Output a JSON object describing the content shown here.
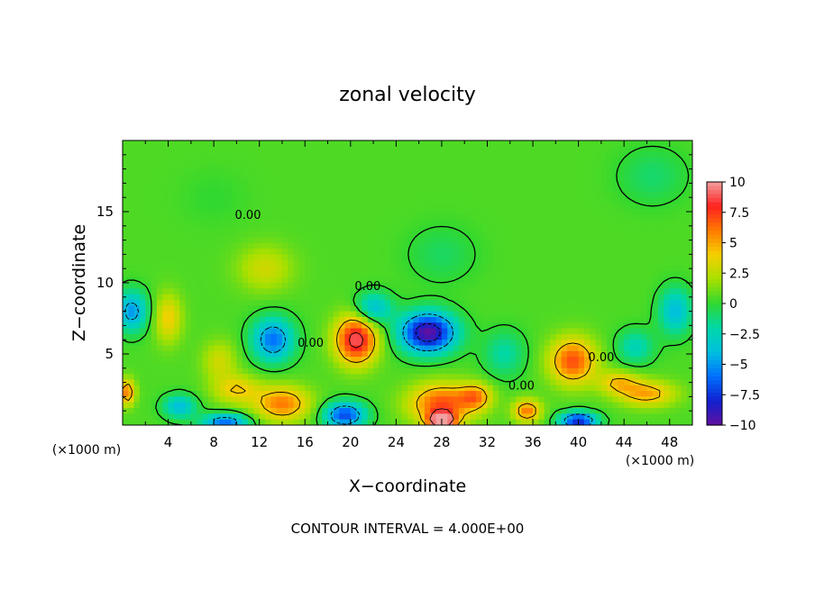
{
  "chart_data": {
    "type": "heatmap",
    "title": "zonal velocity",
    "xlabel": "X−coordinate",
    "ylabel": "Z−coordinate",
    "x_unit_left": "(×1000 m)",
    "x_unit_right": "(×1000 m)",
    "footer": "CONTOUR INTERVAL = 4.000E+00",
    "xlim": [
      0,
      50
    ],
    "ylim": [
      0,
      20
    ],
    "x_ticks": [
      4,
      8,
      12,
      16,
      20,
      24,
      28,
      32,
      36,
      40,
      44,
      48
    ],
    "y_ticks": [
      5,
      10,
      15
    ],
    "colorbar": {
      "range": [
        -10,
        10
      ],
      "tick_values": [
        10,
        7.5,
        5,
        2.5,
        0,
        -2.5,
        -5,
        -7.5,
        -10
      ],
      "tick_labels": [
        "10",
        "7.5",
        "5",
        "2.5",
        "0",
        "−2.5",
        "−5",
        "−7.5",
        "−10"
      ],
      "colors": [
        "#f2a0a0",
        "#ff2020",
        "#ff7a00",
        "#f5d000",
        "#a8e000",
        "#30d830",
        "#00d8a8",
        "#00c0e0",
        "#0070ff",
        "#1020d0",
        "#6010a0"
      ]
    },
    "background_value": 0.5,
    "features": [
      {
        "x": 20.5,
        "z": 6.0,
        "value": 9.0,
        "rx": 1.8,
        "rz": 1.7
      },
      {
        "x": 26.8,
        "z": 6.5,
        "value": -10.0,
        "rx": 2.4,
        "rz": 1.4
      },
      {
        "x": 13.2,
        "z": 6.0,
        "value": -6.0,
        "rx": 1.8,
        "rz": 1.5
      },
      {
        "x": 0.8,
        "z": 8.0,
        "value": -5.0,
        "rx": 1.4,
        "rz": 1.4
      },
      {
        "x": 48.5,
        "z": 8.0,
        "value": -4.0,
        "rx": 1.4,
        "rz": 1.6
      },
      {
        "x": 22.0,
        "z": 8.2,
        "value": -4.0,
        "rx": 1.6,
        "rz": 1.1
      },
      {
        "x": 39.5,
        "z": 4.5,
        "value": 7.0,
        "rx": 2.0,
        "rz": 1.6
      },
      {
        "x": 4.0,
        "z": 7.5,
        "value": 4.0,
        "rx": 1.2,
        "rz": 1.7
      },
      {
        "x": 12.5,
        "z": 11.0,
        "value": 3.0,
        "rx": 2.4,
        "rz": 1.6
      },
      {
        "x": 14.0,
        "z": 1.5,
        "value": 6.0,
        "rx": 2.4,
        "rz": 1.2
      },
      {
        "x": 10.0,
        "z": 2.5,
        "value": 4.0,
        "rx": 2.0,
        "rz": 1.0
      },
      {
        "x": 28.0,
        "z": 1.5,
        "value": 7.0,
        "rx": 2.8,
        "rz": 1.4
      },
      {
        "x": 28.0,
        "z": 0.3,
        "value": 10.0,
        "rx": 1.2,
        "rz": 0.6
      },
      {
        "x": 31.0,
        "z": 2.0,
        "value": 5.0,
        "rx": 1.4,
        "rz": 0.9
      },
      {
        "x": 35.5,
        "z": 1.0,
        "value": 6.0,
        "rx": 1.2,
        "rz": 0.8
      },
      {
        "x": 46.0,
        "z": 2.2,
        "value": 5.0,
        "rx": 2.5,
        "rz": 0.9
      },
      {
        "x": 43.5,
        "z": 3.0,
        "value": 4.0,
        "rx": 1.8,
        "rz": 0.8
      },
      {
        "x": 0.4,
        "z": 2.3,
        "value": 6.0,
        "rx": 0.7,
        "rz": 0.9
      },
      {
        "x": 9.0,
        "z": 0.2,
        "value": -6.0,
        "rx": 2.0,
        "rz": 0.6
      },
      {
        "x": 19.5,
        "z": 0.7,
        "value": -7.0,
        "rx": 1.8,
        "rz": 0.9
      },
      {
        "x": 40.0,
        "z": 0.3,
        "value": -8.0,
        "rx": 1.6,
        "rz": 0.6
      },
      {
        "x": 5.0,
        "z": 1.3,
        "value": -4.0,
        "rx": 1.4,
        "rz": 0.8
      },
      {
        "x": 33.5,
        "z": 5.0,
        "value": -2.0,
        "rx": 1.8,
        "rz": 1.6
      },
      {
        "x": 45.0,
        "z": 5.5,
        "value": -2.5,
        "rx": 1.6,
        "rz": 1.2
      },
      {
        "x": 8.5,
        "z": 4.5,
        "value": 3.0,
        "rx": 1.5,
        "rz": 1.4
      },
      {
        "x": 46.5,
        "z": 17.5,
        "value": -1.0,
        "rx": 3.0,
        "rz": 2.0
      },
      {
        "x": 8.0,
        "z": 16.0,
        "value": 0.0,
        "rx": 3.0,
        "rz": 2.0
      },
      {
        "x": 28.0,
        "z": 12.0,
        "value": -0.8,
        "rx": 3.0,
        "rz": 2.0
      }
    ],
    "contour_labels": [
      {
        "text": "0.00",
        "x": 11.0,
        "z": 14.5
      },
      {
        "text": "0.00",
        "x": 21.5,
        "z": 9.5
      },
      {
        "text": "0.00",
        "x": 16.5,
        "z": 5.5
      },
      {
        "text": "0.00",
        "x": 35.0,
        "z": 2.5
      },
      {
        "text": "0.00",
        "x": 42.0,
        "z": 4.5
      }
    ]
  }
}
